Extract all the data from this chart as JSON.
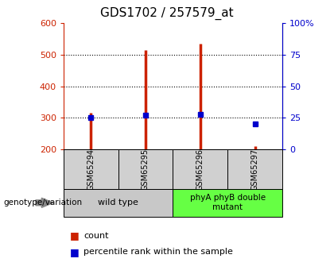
{
  "title": "GDS1702 / 257579_at",
  "samples": [
    "GSM65294",
    "GSM65295",
    "GSM65296",
    "GSM65297"
  ],
  "counts": [
    315,
    515,
    535,
    210
  ],
  "percentiles": [
    25,
    27,
    28,
    20
  ],
  "baseline": 200,
  "ylim_left": [
    200,
    600
  ],
  "ylim_right": [
    0,
    100
  ],
  "yticks_left": [
    200,
    300,
    400,
    500,
    600
  ],
  "yticks_right": [
    0,
    25,
    50,
    75,
    100
  ],
  "yticklabels_right": [
    "0",
    "25",
    "50",
    "75",
    "100%"
  ],
  "bar_color": "#cc2200",
  "dot_color": "#0000cc",
  "group1_label": "wild type",
  "group1_color": "#c8c8c8",
  "group2_label": "phyA phyB double\nmutant",
  "group2_color": "#66ff44",
  "genotype_label": "genotype/variation",
  "legend_count": "count",
  "legend_percentile": "percentile rank within the sample",
  "title_fontsize": 11,
  "left_color": "#cc2200",
  "right_color": "#0000cc"
}
